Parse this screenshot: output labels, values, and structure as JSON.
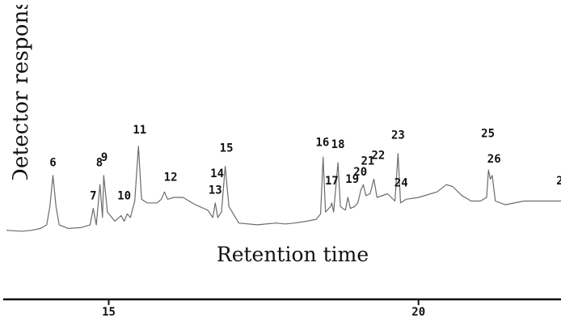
{
  "chart_data": {
    "type": "line",
    "title": "",
    "xlabel": "Retention time",
    "ylabel": "Detector respons",
    "xlim": [
      13.35,
      22.3
    ],
    "ylim": [
      0,
      1
    ],
    "x_ticks": [
      15,
      20
    ],
    "colors": {
      "trace": "#6b6b6b",
      "axis": "#111111",
      "text": "#111111"
    },
    "series": [
      {
        "values": [
          [
            13.35,
            0.05
          ],
          [
            13.6,
            0.045
          ],
          [
            13.75,
            0.05
          ],
          [
            13.9,
            0.06
          ],
          [
            14.0,
            0.08
          ],
          [
            14.05,
            0.18
          ],
          [
            14.1,
            0.35
          ],
          [
            14.15,
            0.18
          ],
          [
            14.2,
            0.08
          ],
          [
            14.35,
            0.06
          ],
          [
            14.55,
            0.065
          ],
          [
            14.7,
            0.08
          ],
          [
            14.75,
            0.17
          ],
          [
            14.8,
            0.08
          ],
          [
            14.86,
            0.3
          ],
          [
            14.9,
            0.12
          ],
          [
            14.92,
            0.35
          ],
          [
            14.98,
            0.15
          ],
          [
            15.1,
            0.1
          ],
          [
            15.2,
            0.13
          ],
          [
            15.25,
            0.1
          ],
          [
            15.3,
            0.14
          ],
          [
            15.35,
            0.12
          ],
          [
            15.42,
            0.21
          ],
          [
            15.48,
            0.51
          ],
          [
            15.53,
            0.22
          ],
          [
            15.62,
            0.2
          ],
          [
            15.78,
            0.2
          ],
          [
            15.85,
            0.22
          ],
          [
            15.9,
            0.26
          ],
          [
            15.95,
            0.22
          ],
          [
            16.05,
            0.23
          ],
          [
            16.2,
            0.23
          ],
          [
            16.4,
            0.19
          ],
          [
            16.6,
            0.16
          ],
          [
            16.68,
            0.12
          ],
          [
            16.72,
            0.2
          ],
          [
            16.76,
            0.12
          ],
          [
            16.82,
            0.15
          ],
          [
            16.88,
            0.4
          ],
          [
            16.94,
            0.18
          ],
          [
            17.1,
            0.09
          ],
          [
            17.4,
            0.08
          ],
          [
            17.7,
            0.09
          ],
          [
            17.85,
            0.085
          ],
          [
            18.0,
            0.09
          ],
          [
            18.2,
            0.1
          ],
          [
            18.35,
            0.11
          ],
          [
            18.42,
            0.14
          ],
          [
            18.46,
            0.45
          ],
          [
            18.5,
            0.15
          ],
          [
            18.58,
            0.18
          ],
          [
            18.6,
            0.2
          ],
          [
            18.63,
            0.15
          ],
          [
            18.7,
            0.42
          ],
          [
            18.74,
            0.18
          ],
          [
            18.82,
            0.16
          ],
          [
            18.86,
            0.23
          ],
          [
            18.9,
            0.17
          ],
          [
            18.97,
            0.18
          ],
          [
            19.02,
            0.2
          ],
          [
            19.07,
            0.27
          ],
          [
            19.11,
            0.3
          ],
          [
            19.15,
            0.24
          ],
          [
            19.22,
            0.25
          ],
          [
            19.28,
            0.33
          ],
          [
            19.33,
            0.23
          ],
          [
            19.5,
            0.25
          ],
          [
            19.62,
            0.21
          ],
          [
            19.67,
            0.47
          ],
          [
            19.71,
            0.2
          ],
          [
            19.8,
            0.22
          ],
          [
            20.0,
            0.23
          ],
          [
            20.3,
            0.26
          ],
          [
            20.45,
            0.3
          ],
          [
            20.55,
            0.29
          ],
          [
            20.7,
            0.24
          ],
          [
            20.85,
            0.21
          ],
          [
            21.0,
            0.21
          ],
          [
            21.1,
            0.23
          ],
          [
            21.13,
            0.38
          ],
          [
            21.16,
            0.33
          ],
          [
            21.19,
            0.35
          ],
          [
            21.24,
            0.21
          ],
          [
            21.4,
            0.19
          ],
          [
            21.7,
            0.21
          ],
          [
            22.0,
            0.21
          ],
          [
            22.3,
            0.21
          ]
        ]
      }
    ],
    "peak_labels": [
      {
        "text": "6",
        "x": 14.1,
        "y": 0.4
      },
      {
        "text": "7",
        "x": 14.75,
        "y": 0.22
      },
      {
        "text": "8",
        "x": 14.85,
        "y": 0.4
      },
      {
        "text": "9",
        "x": 14.93,
        "y": 0.43
      },
      {
        "text": "10",
        "x": 15.25,
        "y": 0.22
      },
      {
        "text": "11",
        "x": 15.5,
        "y": 0.58
      },
      {
        "text": "12",
        "x": 16.0,
        "y": 0.32
      },
      {
        "text": "13",
        "x": 16.72,
        "y": 0.25
      },
      {
        "text": "14",
        "x": 16.75,
        "y": 0.34
      },
      {
        "text": "15",
        "x": 16.9,
        "y": 0.48
      },
      {
        "text": "16",
        "x": 18.45,
        "y": 0.51
      },
      {
        "text": "17",
        "x": 18.6,
        "y": 0.3
      },
      {
        "text": "18",
        "x": 18.7,
        "y": 0.5
      },
      {
        "text": "19",
        "x": 18.93,
        "y": 0.31
      },
      {
        "text": "20",
        "x": 19.06,
        "y": 0.35
      },
      {
        "text": "21",
        "x": 19.18,
        "y": 0.41
      },
      {
        "text": "22",
        "x": 19.35,
        "y": 0.44
      },
      {
        "text": "23",
        "x": 19.67,
        "y": 0.55
      },
      {
        "text": "24",
        "x": 19.72,
        "y": 0.29
      },
      {
        "text": "25",
        "x": 21.12,
        "y": 0.56
      },
      {
        "text": "26",
        "x": 21.22,
        "y": 0.42
      },
      {
        "text": "2",
        "x": 22.28,
        "y": 0.3
      }
    ]
  }
}
